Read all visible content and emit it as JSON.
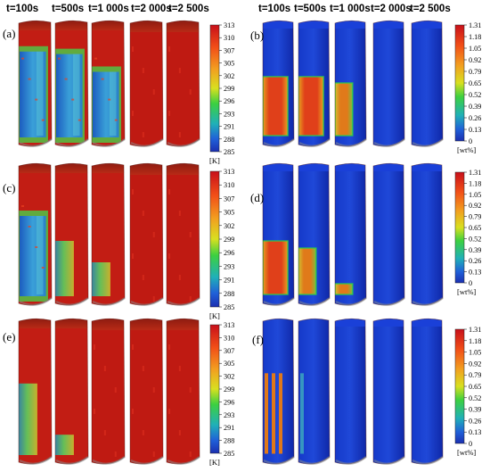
{
  "time_labels": [
    "t=100s",
    "t=500s",
    "t=1 000s",
    "t=2 000s",
    "t=2 500s"
  ],
  "panels": [
    {
      "label": "(a)",
      "kind": "temp"
    },
    {
      "label": "(b)",
      "kind": "wt"
    },
    {
      "label": "(c)",
      "kind": "temp"
    },
    {
      "label": "(d)",
      "kind": "wt"
    },
    {
      "label": "(e)",
      "kind": "temp"
    },
    {
      "label": "(f)",
      "kind": "wt"
    }
  ],
  "temperature_scale": {
    "ticks": [
      "313",
      "310",
      "307",
      "305",
      "302",
      "299",
      "296",
      "293",
      "291",
      "288",
      "285"
    ],
    "unit": "[K]",
    "highlight_tick": "291",
    "highlight_color": "#d00000"
  },
  "concentration_scale": {
    "ticks": [
      "1.31",
      "1.18",
      "1.05",
      "0.92",
      "0.79",
      "0.65",
      "0.52",
      "0.39",
      "0.26",
      "0.13",
      "0"
    ],
    "unit": "[wt%]"
  },
  "colors": {
    "scale_top": "#d8131a",
    "scale_bottom": "#1b2fb0",
    "cold_blue": "#2f9ad8",
    "hot_red": "#c41a14",
    "field_blue": "#1030c8",
    "mid_green": "#27c23c"
  }
}
